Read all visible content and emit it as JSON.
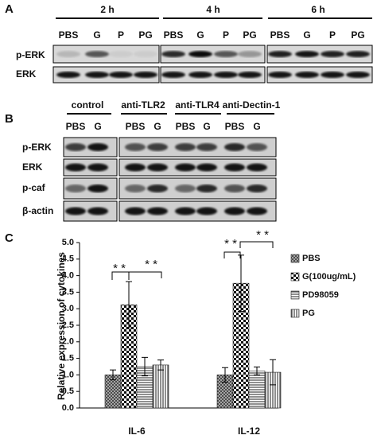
{
  "panel_a": {
    "label": "A",
    "rows": [
      "p-ERK",
      "ERK"
    ],
    "groups": [
      {
        "name": "2 h",
        "lanes": [
          "PBS",
          "G",
          "P",
          "PG"
        ]
      },
      {
        "name": "4 h",
        "lanes": [
          "PBS",
          "G",
          "P",
          "PG"
        ]
      },
      {
        "name": "6 h",
        "lanes": [
          "PBS",
          "G",
          "P",
          "PG"
        ]
      }
    ]
  },
  "panel_b": {
    "label": "B",
    "rows": [
      "p-ERK",
      "ERK",
      "p-caf",
      "β-actin"
    ],
    "groups": [
      {
        "name": "control",
        "lanes": [
          "PBS",
          "G"
        ]
      },
      {
        "name": "anti-TLR2",
        "lanes": [
          "PBS",
          "G"
        ]
      },
      {
        "name": "anti-TLR4",
        "lanes": [
          "PBS",
          "G"
        ]
      },
      {
        "name": "anti-Dectin-1",
        "lanes": [
          "PBS",
          "G"
        ]
      }
    ]
  },
  "chart_data": {
    "type": "bar",
    "panel_label": "C",
    "y_label": "Relative expression of  cytokines",
    "categories": [
      "IL-6",
      "IL-12"
    ],
    "series": [
      {
        "name": "PBS",
        "pattern": "crosshatch",
        "values": [
          1.0,
          1.0
        ],
        "errors": [
          0.15,
          0.22
        ]
      },
      {
        "name": "G(100ug/mL)",
        "pattern": "checker",
        "values": [
          3.12,
          3.77
        ],
        "errors": [
          0.7,
          0.85
        ]
      },
      {
        "name": "PD98059",
        "pattern": "hlines",
        "values": [
          1.25,
          1.12
        ],
        "errors": [
          0.28,
          0.12
        ]
      },
      {
        "name": "PG",
        "pattern": "vlines",
        "values": [
          1.3,
          1.08
        ],
        "errors": [
          0.15,
          0.38
        ]
      }
    ],
    "annotations": [
      "* *",
      "* *",
      "* *",
      "* *"
    ],
    "ylim": [
      0,
      5
    ],
    "yticks": [
      {
        "value": 0,
        "label": "0.0"
      },
      {
        "value": 0.5,
        "label": "0.5"
      },
      {
        "value": 1,
        "label": "1.0"
      },
      {
        "value": 1.5,
        "label": "1.5"
      },
      {
        "value": 2,
        "label": "2.0"
      },
      {
        "value": 2.5,
        "label": "2.5"
      },
      {
        "value": 3,
        "label": "3.0"
      },
      {
        "value": 3.5,
        "label": "3.5"
      },
      {
        "value": 4,
        "label": "4.0"
      },
      {
        "value": 4.5,
        "label": "4.5"
      },
      {
        "value": 5,
        "label": "5.0"
      }
    ]
  }
}
